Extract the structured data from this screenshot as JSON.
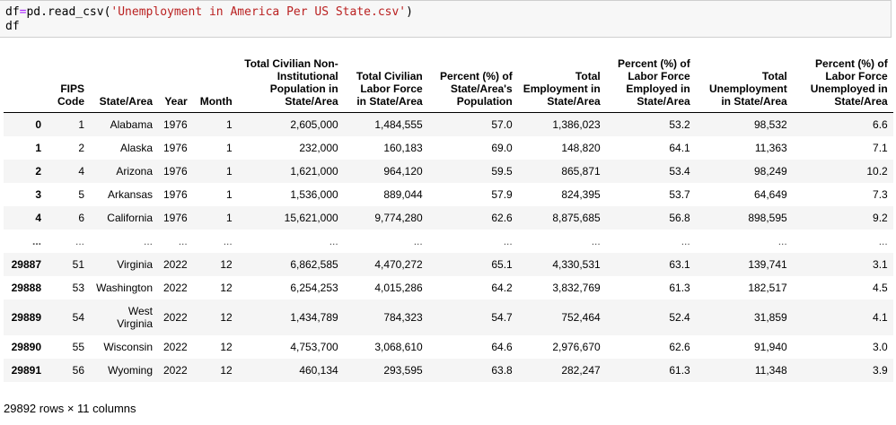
{
  "code": {
    "line1_prefix": "df",
    "line1_eq": "=",
    "line1_call": "pd.read_csv(",
    "line1_string": "'Unemployment in America Per US State.csv'",
    "line1_close": ")",
    "line2": "df"
  },
  "table": {
    "columns": [
      "",
      "FIPS Code",
      "State/Area",
      "Year",
      "Month",
      "Total Civilian Non-Institutional Population in State/Area",
      "Total Civilian Labor Force in State/Area",
      "Percent (%) of State/Area's Population",
      "Total Employment in State/Area",
      "Percent (%) of Labor Force Employed in State/Area",
      "Total Unemployment in State/Area",
      "Percent (%) of Labor Force Unemployed in State/Area"
    ],
    "rows": [
      [
        "0",
        "1",
        "Alabama",
        "1976",
        "1",
        "2,605,000",
        "1,484,555",
        "57.0",
        "1,386,023",
        "53.2",
        "98,532",
        "6.6"
      ],
      [
        "1",
        "2",
        "Alaska",
        "1976",
        "1",
        "232,000",
        "160,183",
        "69.0",
        "148,820",
        "64.1",
        "11,363",
        "7.1"
      ],
      [
        "2",
        "4",
        "Arizona",
        "1976",
        "1",
        "1,621,000",
        "964,120",
        "59.5",
        "865,871",
        "53.4",
        "98,249",
        "10.2"
      ],
      [
        "3",
        "5",
        "Arkansas",
        "1976",
        "1",
        "1,536,000",
        "889,044",
        "57.9",
        "824,395",
        "53.7",
        "64,649",
        "7.3"
      ],
      [
        "4",
        "6",
        "California",
        "1976",
        "1",
        "15,621,000",
        "9,774,280",
        "62.6",
        "8,875,685",
        "56.8",
        "898,595",
        "9.2"
      ],
      [
        "...",
        "...",
        "...",
        "...",
        "...",
        "...",
        "...",
        "...",
        "...",
        "...",
        "...",
        "..."
      ],
      [
        "29887",
        "51",
        "Virginia",
        "2022",
        "12",
        "6,862,585",
        "4,470,272",
        "65.1",
        "4,330,531",
        "63.1",
        "139,741",
        "3.1"
      ],
      [
        "29888",
        "53",
        "Washington",
        "2022",
        "12",
        "6,254,253",
        "4,015,286",
        "64.2",
        "3,832,769",
        "61.3",
        "182,517",
        "4.5"
      ],
      [
        "29889",
        "54",
        "West Virginia",
        "2022",
        "12",
        "1,434,789",
        "784,323",
        "54.7",
        "752,464",
        "52.4",
        "31,859",
        "4.1"
      ],
      [
        "29890",
        "55",
        "Wisconsin",
        "2022",
        "12",
        "4,753,700",
        "3,068,610",
        "64.6",
        "2,976,670",
        "62.6",
        "91,940",
        "3.0"
      ],
      [
        "29891",
        "56",
        "Wyoming",
        "2022",
        "12",
        "460,134",
        "293,595",
        "63.8",
        "282,247",
        "61.3",
        "11,348",
        "3.9"
      ]
    ]
  },
  "footer": "29892 rows × 11 columns"
}
